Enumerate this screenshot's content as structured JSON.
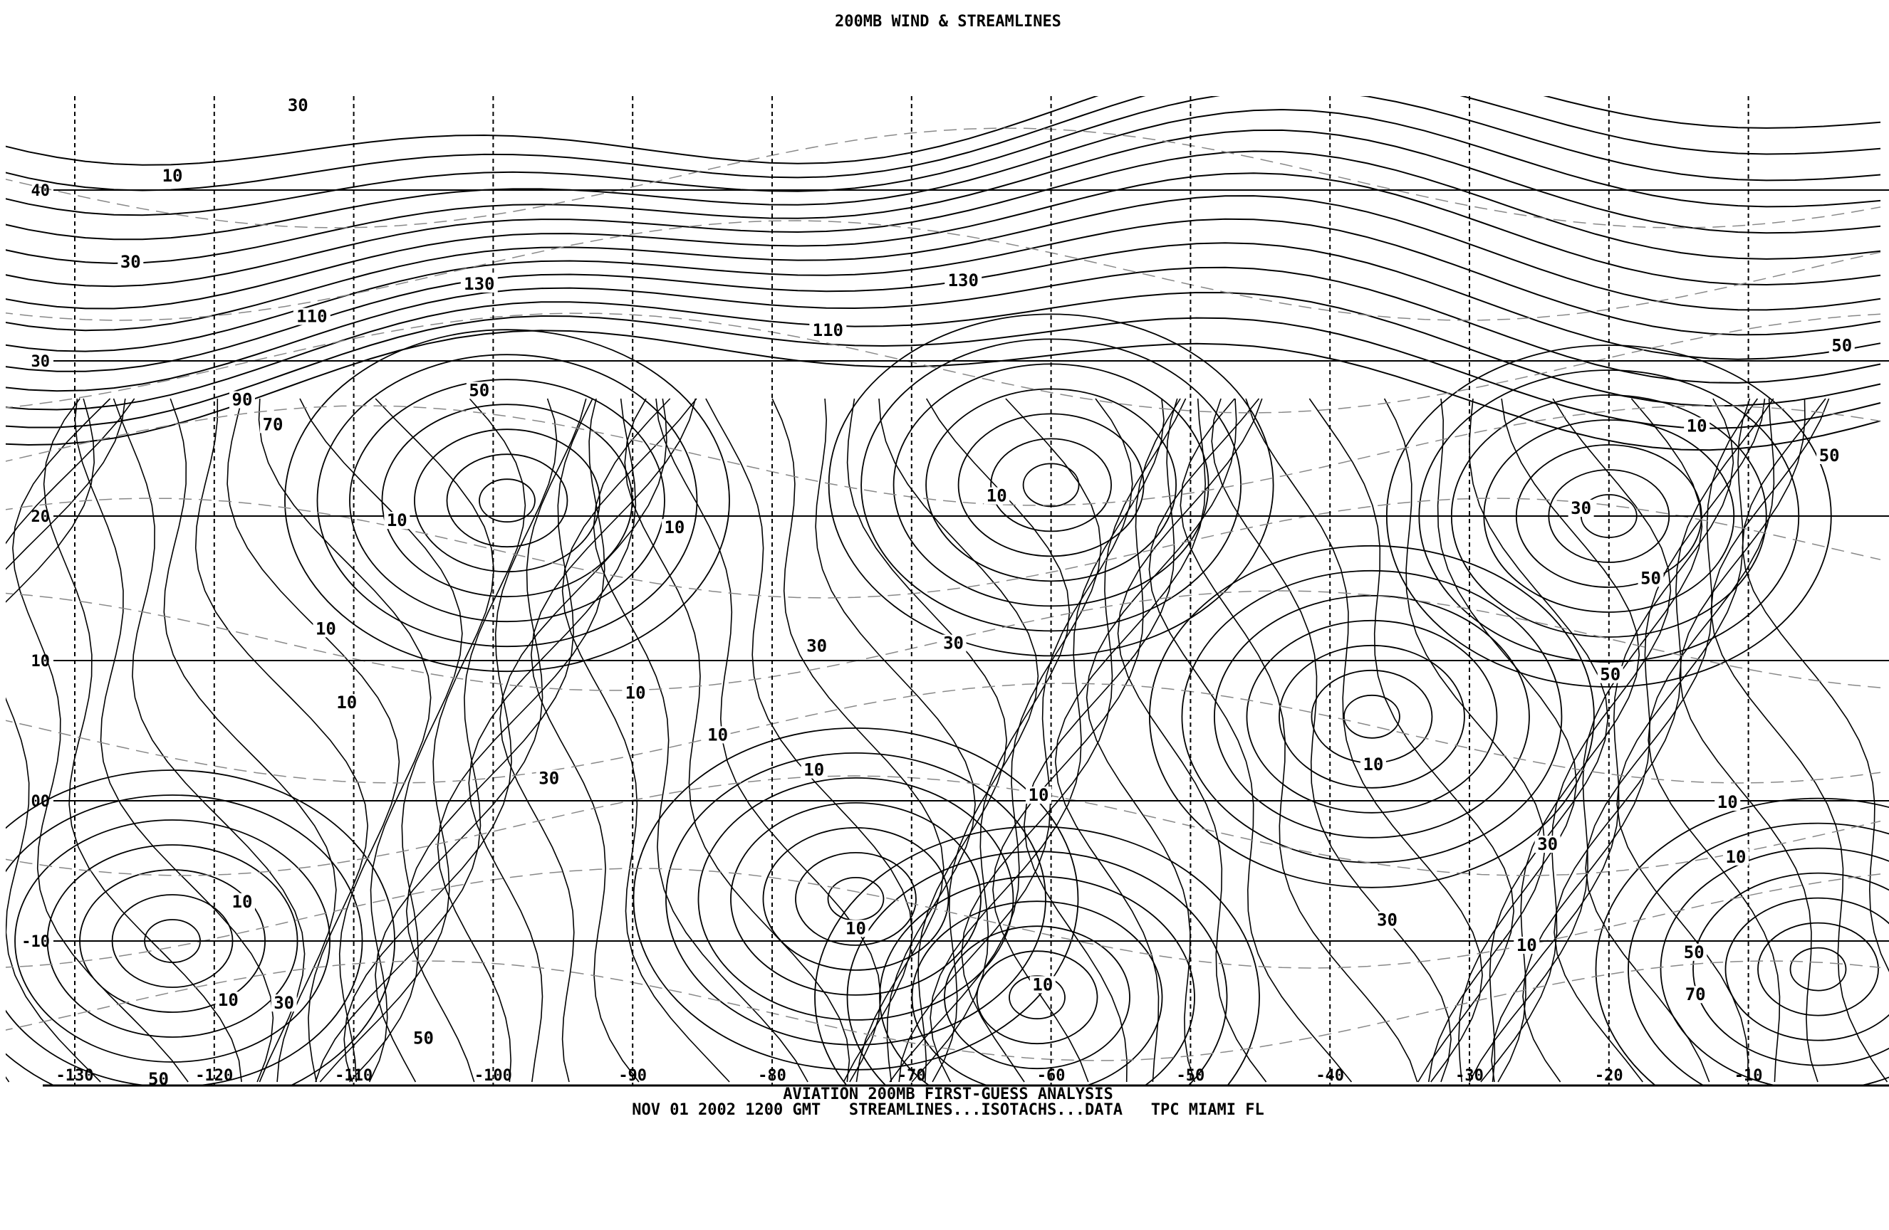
{
  "title": "200MB WIND & STREAMLINES",
  "footer": {
    "line1": "AVIATION 200MB FIRST-GUESS ANALYSIS",
    "line2": "NOV 01 2002 1200 GMT   STREAMLINES...ISOTACHS...DATA   TPC MIAMI FL"
  },
  "colors": {
    "ink": "#000000",
    "background": "#ffffff",
    "isotach": "#888888"
  },
  "map": {
    "projection": "mercator",
    "lon_range": [
      -133,
      -5
    ],
    "lat_range": [
      -20,
      46
    ],
    "longitudes": [
      {
        "value": -130,
        "label": "-130"
      },
      {
        "value": -120,
        "label": "-120"
      },
      {
        "value": -110,
        "label": "-110"
      },
      {
        "value": -100,
        "label": "-100"
      },
      {
        "value": -90,
        "label": "-90"
      },
      {
        "value": -80,
        "label": "-80"
      },
      {
        "value": -70,
        "label": "-70"
      },
      {
        "value": -60,
        "label": "-60"
      },
      {
        "value": -50,
        "label": "-50"
      },
      {
        "value": -40,
        "label": "-40"
      },
      {
        "value": -30,
        "label": "-30"
      },
      {
        "value": -20,
        "label": "-20"
      },
      {
        "value": -10,
        "label": "-10"
      }
    ],
    "latitudes": [
      {
        "value": 40,
        "label": "40"
      },
      {
        "value": 30,
        "label": "30"
      },
      {
        "value": 20,
        "label": "20"
      },
      {
        "value": 10,
        "label": "10"
      },
      {
        "value": 0,
        "label": "00"
      },
      {
        "value": -10,
        "label": "-10"
      }
    ],
    "isotach_labels": [
      {
        "text": "30",
        "lon": -114,
        "lat": 45.4
      },
      {
        "text": "10",
        "lon": -123,
        "lat": 40.9
      },
      {
        "text": "30",
        "lon": -126,
        "lat": 35.8
      },
      {
        "text": "130",
        "lon": -101,
        "lat": 34.5
      },
      {
        "text": "110",
        "lon": -113,
        "lat": 32.6
      },
      {
        "text": "90",
        "lon": -118,
        "lat": 27.5
      },
      {
        "text": "70",
        "lon": -115.8,
        "lat": 25.9
      },
      {
        "text": "50",
        "lon": -101,
        "lat": 28.1
      },
      {
        "text": "10",
        "lon": -106.9,
        "lat": 19.7
      },
      {
        "text": "10",
        "lon": -112,
        "lat": 12.2
      },
      {
        "text": "10",
        "lon": -110.5,
        "lat": 7
      },
      {
        "text": "10",
        "lon": -87,
        "lat": 19.2
      },
      {
        "text": "10",
        "lon": -63.9,
        "lat": 21.3
      },
      {
        "text": "130",
        "lon": -66.3,
        "lat": 34.7
      },
      {
        "text": "110",
        "lon": -76,
        "lat": 31.8
      },
      {
        "text": "30",
        "lon": -76.8,
        "lat": 11
      },
      {
        "text": "30",
        "lon": -67,
        "lat": 11.2
      },
      {
        "text": "10",
        "lon": -89.8,
        "lat": 7.7
      },
      {
        "text": "10",
        "lon": -83.9,
        "lat": 4.7
      },
      {
        "text": "10",
        "lon": -77,
        "lat": 2.2
      },
      {
        "text": "30",
        "lon": -96,
        "lat": 1.6
      },
      {
        "text": "10",
        "lon": -60.9,
        "lat": 0.4
      },
      {
        "text": "10",
        "lon": -74,
        "lat": -9.1
      },
      {
        "text": "10",
        "lon": -118,
        "lat": -7.2
      },
      {
        "text": "10",
        "lon": -119,
        "lat": -14.2
      },
      {
        "text": "30",
        "lon": -115,
        "lat": -14.4
      },
      {
        "text": "50",
        "lon": -105,
        "lat": -16.9
      },
      {
        "text": "50",
        "lon": -124,
        "lat": -19.8
      },
      {
        "text": "10",
        "lon": -60.6,
        "lat": -13.1
      },
      {
        "text": "10",
        "lon": -36.9,
        "lat": 2.6
      },
      {
        "text": "50",
        "lon": -3.3,
        "lat": 30.9
      },
      {
        "text": "10",
        "lon": -13.7,
        "lat": 25.8
      },
      {
        "text": "50",
        "lon": -4.2,
        "lat": 23.9
      },
      {
        "text": "30",
        "lon": -22,
        "lat": 20.5
      },
      {
        "text": "50",
        "lon": -17,
        "lat": 15.7
      },
      {
        "text": "50",
        "lon": -19.9,
        "lat": 9
      },
      {
        "text": "30",
        "lon": -24.4,
        "lat": -3.1
      },
      {
        "text": "10",
        "lon": -11.5,
        "lat": -0.1
      },
      {
        "text": "10",
        "lon": -10.9,
        "lat": -4
      },
      {
        "text": "30",
        "lon": -35.9,
        "lat": -8.5
      },
      {
        "text": "10",
        "lon": -25.9,
        "lat": -10.3
      },
      {
        "text": "50",
        "lon": -13.9,
        "lat": -10.8
      },
      {
        "text": "70",
        "lon": -13.8,
        "lat": -13.8
      }
    ]
  }
}
